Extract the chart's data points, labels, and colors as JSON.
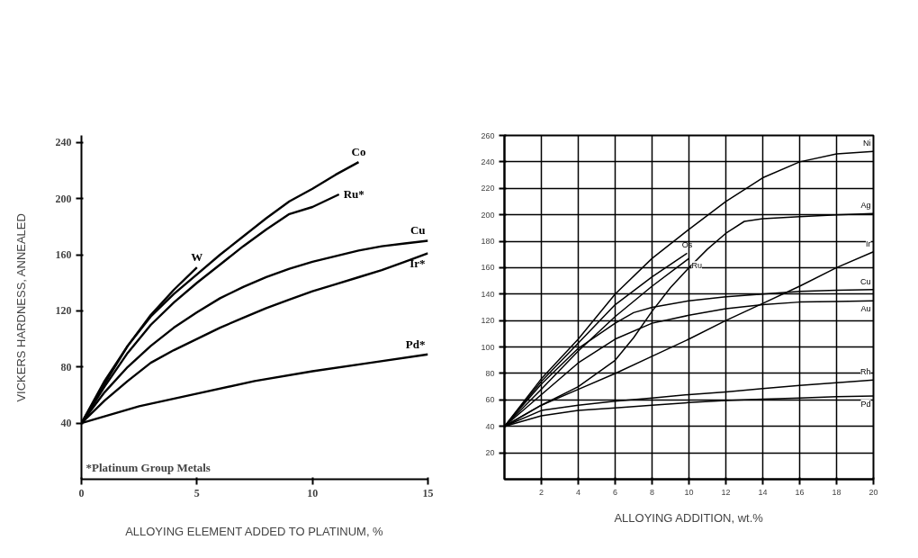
{
  "chart_data": [
    {
      "type": "line",
      "xlabel": "ALLOYING ELEMENT ADDED TO PLATINUM, %",
      "ylabel": "VICKERS HARDNESS, ANNEALED",
      "xlim": [
        0,
        15
      ],
      "ylim": [
        0,
        245
      ],
      "xticks": [
        0,
        5,
        10,
        15
      ],
      "yticks": [
        40,
        80,
        120,
        160,
        200,
        240
      ],
      "grid": false,
      "annotations": [
        "*Platinum Group Metals"
      ],
      "series": [
        {
          "name": "W",
          "color": "#000000",
          "x": [
            0,
            1,
            2,
            3,
            4,
            5
          ],
          "values": [
            40,
            68,
            95,
            117,
            135,
            151
          ]
        },
        {
          "name": "Co",
          "color": "#000000",
          "x": [
            0,
            1,
            2,
            3,
            4,
            5,
            6,
            7,
            8,
            9,
            10,
            11,
            12
          ],
          "values": [
            40,
            70,
            95,
            116,
            132,
            146,
            160,
            173,
            186,
            198,
            207,
            217,
            226
          ]
        },
        {
          "name": "Ru*",
          "color": "#000000",
          "x": [
            0,
            1,
            2,
            3,
            4,
            5,
            6,
            7,
            8,
            9,
            10,
            11.15
          ],
          "values": [
            40,
            66,
            90,
            110,
            126,
            140,
            153,
            166,
            178,
            189,
            194,
            203
          ]
        },
        {
          "name": "Cu",
          "color": "#000000",
          "x": [
            0,
            1,
            2,
            3,
            4,
            5,
            6,
            7,
            8,
            9,
            10,
            11,
            12,
            13,
            14,
            15
          ],
          "values": [
            40,
            62,
            80,
            95,
            108,
            119,
            129,
            137,
            144,
            150,
            155,
            159,
            163,
            166,
            168,
            170
          ]
        },
        {
          "name": "Ir*",
          "color": "#000000",
          "x": [
            0,
            1,
            2,
            3,
            4,
            5,
            6,
            7,
            8,
            9,
            10,
            11,
            12,
            13,
            14,
            15
          ],
          "values": [
            40,
            56,
            70,
            83,
            92,
            100,
            108,
            115,
            122,
            128,
            134,
            139,
            144,
            149,
            155,
            161
          ]
        },
        {
          "name": "Pd*",
          "color": "#000000",
          "x": [
            0,
            2.5,
            5,
            7.5,
            10,
            12.5,
            15
          ],
          "values": [
            40,
            52,
            61,
            70,
            77,
            83,
            89
          ]
        }
      ]
    },
    {
      "type": "line",
      "xlabel": "ALLOYING ADDITION, wt.%",
      "xlim": [
        0,
        20
      ],
      "ylim": [
        0,
        260
      ],
      "xticks": [
        2,
        4,
        6,
        8,
        10,
        12,
        14,
        16,
        18,
        20
      ],
      "yticks": [
        20,
        40,
        60,
        80,
        100,
        120,
        140,
        160,
        180,
        200,
        220,
        240,
        260
      ],
      "grid": true,
      "series": [
        {
          "name": "Ni",
          "color": "#000000",
          "x": [
            0,
            2,
            4,
            6,
            8,
            10,
            12,
            14,
            16,
            18,
            20
          ],
          "values": [
            40,
            76,
            106,
            140,
            167,
            189,
            210,
            228,
            240,
            246,
            248
          ]
        },
        {
          "name": "Ag",
          "color": "#000000",
          "x": [
            0,
            2,
            4,
            6,
            7,
            8,
            9,
            10,
            11,
            12,
            13,
            14,
            16,
            18,
            20
          ],
          "values": [
            40,
            56,
            70,
            90,
            107,
            127,
            145,
            160,
            174,
            186,
            195,
            197,
            198.5,
            200,
            201
          ]
        },
        {
          "name": "Os",
          "color": "#000000",
          "x": [
            0,
            2,
            4,
            6,
            8,
            9.9
          ],
          "values": [
            40,
            74,
            103,
            132,
            153,
            171
          ]
        },
        {
          "name": "Ru",
          "color": "#000000",
          "x": [
            0,
            2,
            4,
            6,
            8,
            10
          ],
          "values": [
            40,
            68,
            97,
            123,
            146,
            167
          ]
        },
        {
          "name": "Cu",
          "color": "#000000",
          "x": [
            0,
            2,
            4,
            6,
            7,
            8,
            10,
            12,
            14,
            16,
            18,
            20
          ],
          "values": [
            40,
            72,
            99,
            118,
            126,
            130,
            135,
            138,
            140,
            142,
            143,
            143.5
          ]
        },
        {
          "name": "Au",
          "color": "#000000",
          "x": [
            0,
            2,
            4,
            6,
            8,
            10,
            12,
            14,
            16,
            18,
            20
          ],
          "values": [
            40,
            64,
            88,
            106,
            118,
            124,
            129,
            132,
            134,
            134.5,
            135
          ]
        },
        {
          "name": "Ir",
          "color": "#000000",
          "x": [
            0,
            2,
            4,
            6,
            8,
            10,
            12,
            14,
            16,
            18,
            20
          ],
          "values": [
            40,
            56,
            68,
            80,
            93,
            106,
            120,
            133,
            146,
            160,
            172
          ]
        },
        {
          "name": "Rh",
          "color": "#000000",
          "x": [
            0,
            2,
            4,
            6,
            8,
            10,
            12,
            14,
            16,
            18,
            20
          ],
          "values": [
            40,
            52,
            56,
            59,
            61.5,
            64,
            66,
            68.5,
            71,
            73,
            75
          ]
        },
        {
          "name": "Pd",
          "color": "#000000",
          "x": [
            0,
            2,
            4,
            6,
            8,
            10,
            12,
            14,
            16,
            18,
            20
          ],
          "values": [
            40,
            48,
            52,
            54,
            56,
            58,
            59.5,
            60.5,
            61.5,
            62.5,
            63
          ]
        }
      ]
    }
  ]
}
